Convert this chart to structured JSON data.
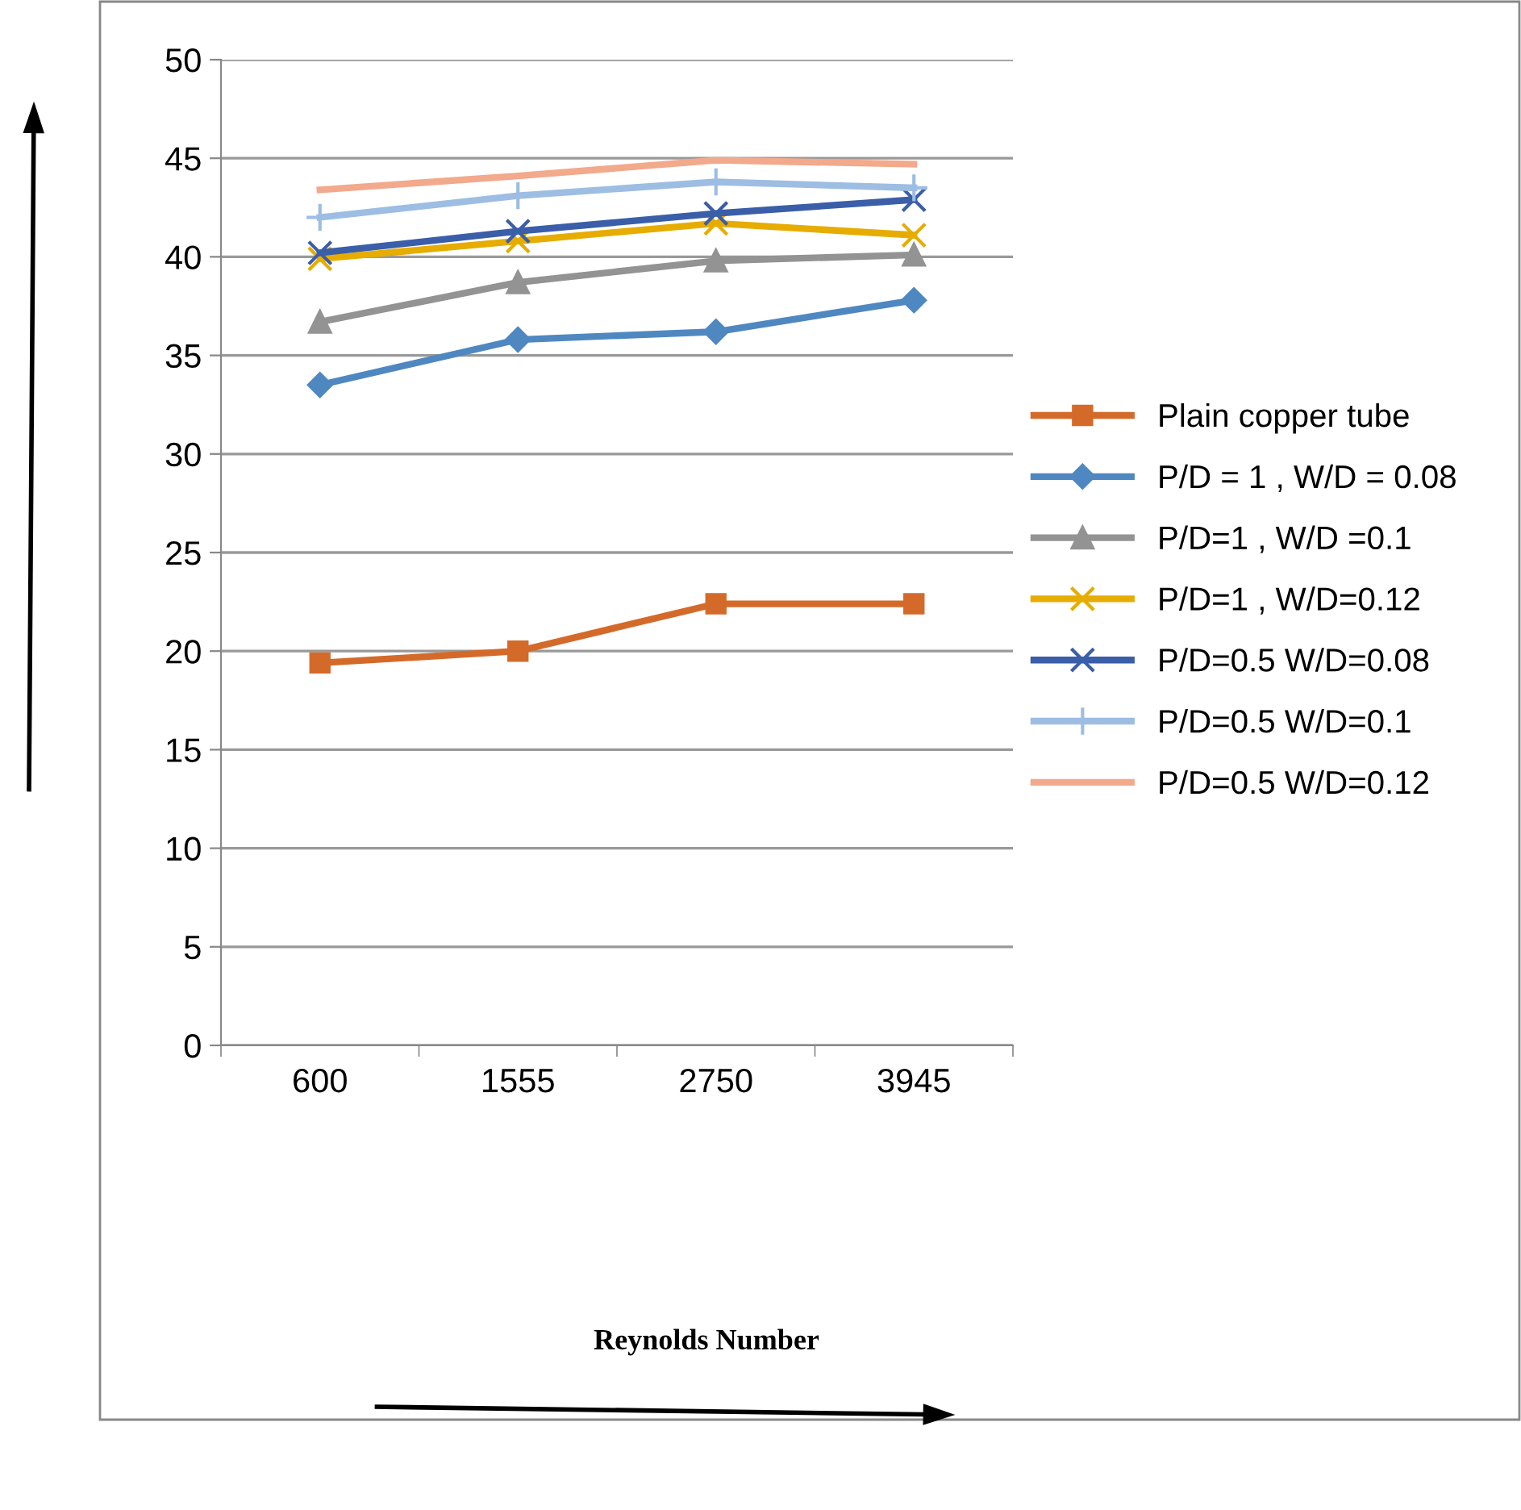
{
  "chart_data": {
    "type": "line",
    "annotations": [
      "Reynolds Number"
    ],
    "categories": [
      "600",
      "1555",
      "2750",
      "3945"
    ],
    "series": [
      {
        "name": "Plain copper tube",
        "color": "#d46a2a",
        "marker": "square",
        "values": [
          19.4,
          20.0,
          22.4,
          22.4
        ]
      },
      {
        "name": "P/D = 1 , W/D = 0.08",
        "color": "#4f88c0",
        "marker": "diamond",
        "values": [
          33.5,
          35.8,
          36.2,
          37.8
        ]
      },
      {
        "name": "P/D=1 , W/D =0.1",
        "color": "#939393",
        "marker": "triangle",
        "values": [
          36.7,
          38.7,
          39.8,
          40.1
        ]
      },
      {
        "name": "P/D=1 , W/D=0.12",
        "color": "#e6ac00",
        "marker": "cross",
        "values": [
          39.9,
          40.8,
          41.7,
          41.1
        ]
      },
      {
        "name": "P/D=0.5 W/D=0.08",
        "color": "#3a5ea8",
        "marker": "cross",
        "values": [
          40.2,
          41.3,
          42.2,
          42.9
        ]
      },
      {
        "name": "P/D=0.5 W/D=0.1",
        "color": "#9dbde3",
        "marker": "plus",
        "values": [
          42.0,
          43.1,
          43.8,
          43.5
        ]
      },
      {
        "name": "P/D=0.5 W/D=0.12",
        "color": "#f2a98c",
        "marker": "none",
        "values": [
          43.4,
          44.1,
          44.9,
          44.7
        ]
      }
    ],
    "ylim": [
      0,
      50
    ],
    "yticks": [
      0,
      5,
      10,
      15,
      20,
      25,
      30,
      35,
      40,
      45,
      50
    ],
    "grid": "y",
    "legend": "right"
  }
}
